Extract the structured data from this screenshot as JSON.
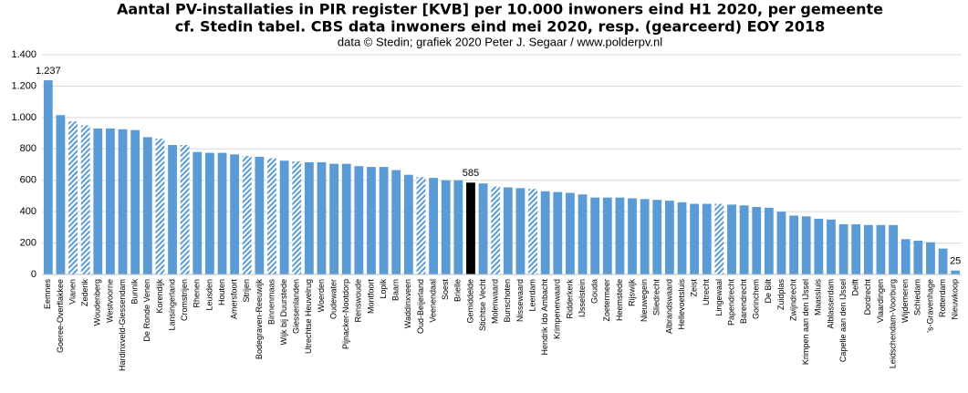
{
  "chart_data": {
    "type": "bar",
    "title": "Aantal PV-installaties in PIR register [KVB] per 10.000 inwoners eind H1 2020, per gemeente",
    "title_line2": "cf. Stedin tabel. CBS data inwoners eind mei 2020, resp. (gearceerd) EOY 2018",
    "subtitle": "data © Stedin; grafiek 2020 Peter J. Segaar / www.polderpv.nl",
    "categories": [
      "Eemnes",
      "Goeree-Overflakkee",
      "Vianen",
      "Zederik",
      "Woudenberg",
      "Westvoorne",
      "Hardinxveld-Giessendam",
      "Bunnik",
      "De Ronde Venen",
      "Korendijk",
      "Lansingerland",
      "Cromstrijen",
      "Rhenen",
      "Leusden",
      "Houten",
      "Amersfoort",
      "Strijen",
      "Bodegraven-Reeuwijk",
      "Binnenmaas",
      "Wijk bij Duurstede",
      "Giessenlanden",
      "Utrechtse Heuvelrug",
      "Woerden",
      "Oudewater",
      "Pijnacker-Nootdorp",
      "Renswoude",
      "Montfoort",
      "Lopik",
      "Baarn",
      "Waddinxveen",
      "Oud-Beijerland",
      "Veenendaal",
      "Soest",
      "Brielle",
      "Gemiddelde",
      "Stichtse Vecht",
      "Molenwaard",
      "Bunschoten",
      "Nissewaard",
      "Leerdam",
      "Hendrik Ido Ambacht",
      "Krimpenerwaard",
      "Ridderkerk",
      "IJsselstein",
      "Gouda",
      "Zoetermeer",
      "Heemstede",
      "Rijswijk",
      "Nieuwegein",
      "Sliedrecht",
      "Albrandswaard",
      "Hellevoetsluis",
      "Zeist",
      "Utrecht",
      "Lingewaal",
      "Papendrecht",
      "Barendrecht",
      "Gorinchem",
      "De Bilt",
      "Zuidplas",
      "Zwijndrecht",
      "Krimpen aan den IJssel",
      "Maassluis",
      "Alblasserdam",
      "Capelle aan den IJssel",
      "Delft",
      "Dordrecht",
      "Vlaardingen",
      "Leidschendam-Voorburg",
      "Wijdemeren",
      "Schiedam",
      "'s-Gravenhage",
      "Rotterdam",
      "Nieuwkoop"
    ],
    "values": [
      1237,
      1015,
      975,
      950,
      930,
      930,
      925,
      920,
      875,
      865,
      825,
      825,
      780,
      775,
      775,
      765,
      755,
      750,
      740,
      725,
      720,
      715,
      715,
      705,
      705,
      690,
      685,
      685,
      665,
      635,
      620,
      615,
      600,
      600,
      585,
      580,
      560,
      555,
      550,
      545,
      530,
      525,
      520,
      510,
      490,
      490,
      490,
      485,
      480,
      475,
      470,
      460,
      450,
      450,
      450,
      445,
      440,
      430,
      425,
      400,
      375,
      370,
      355,
      350,
      320,
      320,
      315,
      315,
      315,
      225,
      215,
      205,
      165,
      25
    ],
    "value_labels": [
      "1.237",
      null,
      null,
      null,
      null,
      null,
      null,
      null,
      null,
      null,
      null,
      null,
      null,
      null,
      null,
      null,
      null,
      null,
      null,
      null,
      null,
      null,
      null,
      null,
      null,
      null,
      null,
      null,
      null,
      null,
      null,
      null,
      null,
      null,
      "585",
      null,
      null,
      null,
      null,
      null,
      null,
      null,
      null,
      null,
      null,
      null,
      null,
      null,
      null,
      null,
      null,
      null,
      null,
      null,
      null,
      null,
      null,
      null,
      null,
      null,
      null,
      null,
      null,
      null,
      null,
      null,
      null,
      null,
      null,
      null,
      null,
      null,
      null,
      "25"
    ],
    "bar_fills": [
      "solid",
      "solid",
      "hatched",
      "hatched",
      "solid",
      "solid",
      "solid",
      "solid",
      "solid",
      "hatched",
      "solid",
      "hatched",
      "solid",
      "solid",
      "solid",
      "solid",
      "hatched",
      "solid",
      "hatched",
      "solid",
      "hatched",
      "solid",
      "solid",
      "solid",
      "solid",
      "solid",
      "solid",
      "solid",
      "solid",
      "solid",
      "hatched",
      "solid",
      "solid",
      "solid",
      "highlight",
      "solid",
      "hatched",
      "solid",
      "solid",
      "hatched",
      "solid",
      "solid",
      "solid",
      "solid",
      "solid",
      "solid",
      "solid",
      "solid",
      "solid",
      "solid",
      "solid",
      "solid",
      "solid",
      "solid",
      "hatched",
      "solid",
      "solid",
      "solid",
      "solid",
      "solid",
      "solid",
      "solid",
      "solid",
      "solid",
      "solid",
      "solid",
      "solid",
      "solid",
      "solid",
      "solid",
      "solid",
      "solid",
      "solid",
      "solid"
    ],
    "color": "#5b9bd5",
    "highlight_color": "#000000",
    "ylim": [
      0,
      1400
    ],
    "yticks": [
      {
        "value": 0,
        "label": "0"
      },
      {
        "value": 200,
        "label": "200"
      },
      {
        "value": 400,
        "label": "400"
      },
      {
        "value": 600,
        "label": "600"
      },
      {
        "value": 800,
        "label": "800"
      },
      {
        "value": 1000,
        "label": "1.000"
      },
      {
        "value": 1200,
        "label": "1.200"
      },
      {
        "value": 1400,
        "label": "1.400"
      }
    ],
    "grid": true
  }
}
